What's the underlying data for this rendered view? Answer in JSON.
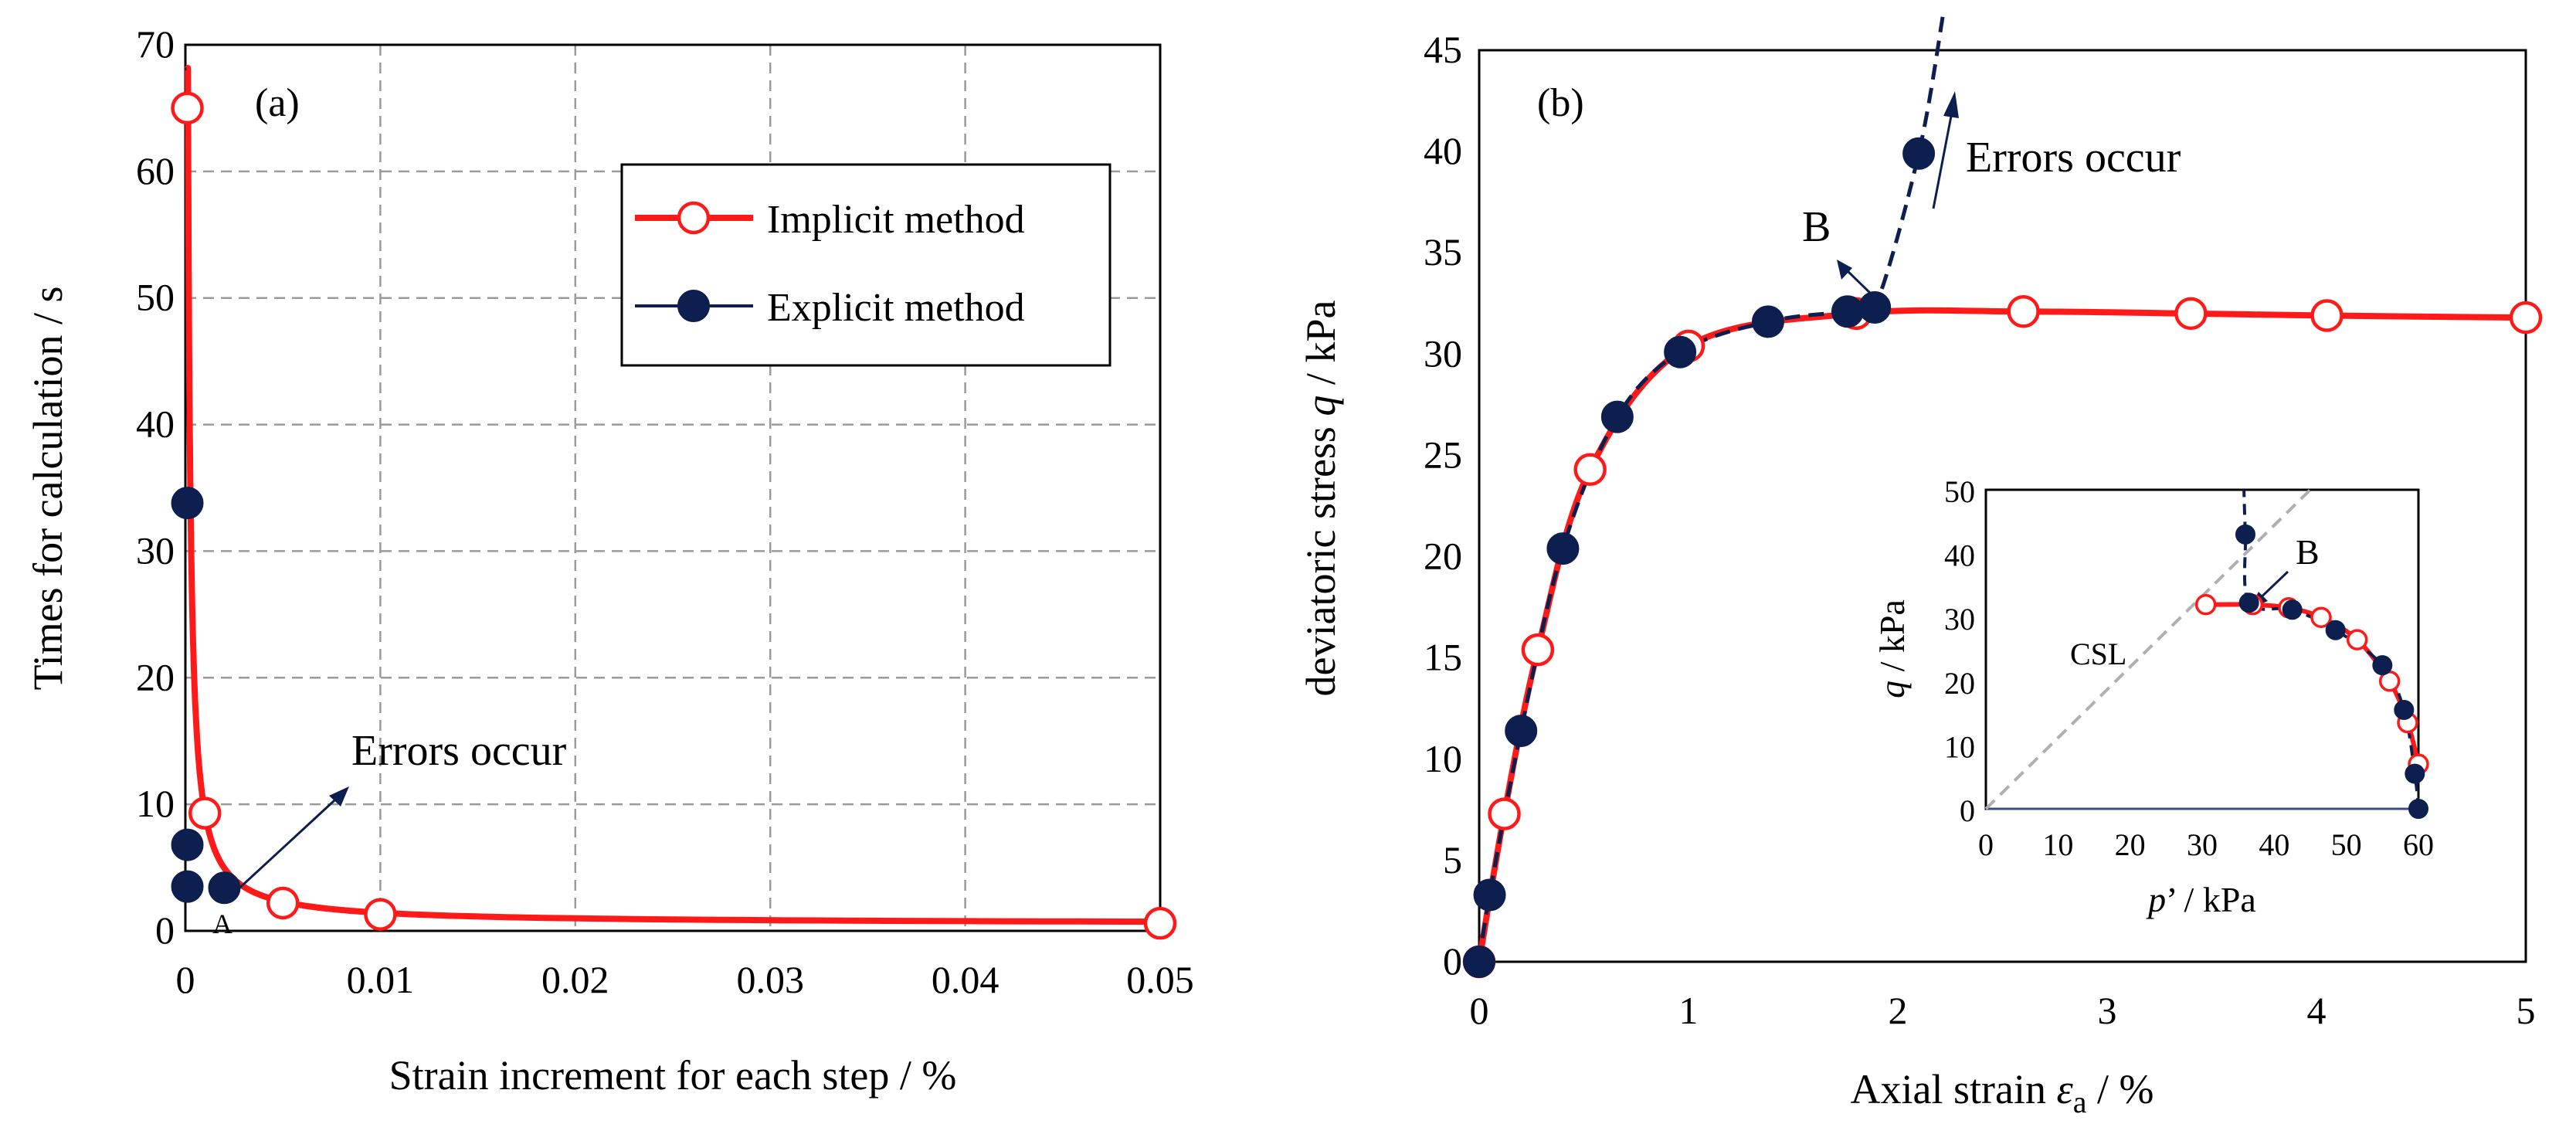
{
  "chart_data": [
    {
      "panel": "(a)",
      "type": "line",
      "xlabel": "Strain increment for each step / %",
      "ylabel": "Times for calculation / s",
      "xlim": [
        0,
        0.05
      ],
      "ylim": [
        0,
        70
      ],
      "x_ticks": [
        "0",
        "0.01",
        "0.02",
        "0.03",
        "0.04",
        "0.05"
      ],
      "y_ticks": [
        "0",
        "10",
        "20",
        "30",
        "40",
        "50",
        "60",
        "70"
      ],
      "grid": true,
      "legend_position": "top-right",
      "series": [
        {
          "name": "Implicit method",
          "color": "#ff1a1a",
          "marker": "open-circle",
          "points": [
            [
              0.0001,
              65
            ],
            [
              0.001,
              9.3
            ],
            [
              0.005,
              2.2
            ],
            [
              0.01,
              1.3
            ],
            [
              0.05,
              0.6
            ]
          ]
        },
        {
          "name": "Explicit method",
          "color": "#0d1f4f",
          "marker": "filled-circle",
          "points": [
            [
              0.0001,
              33.8
            ],
            [
              0.0001,
              6.8
            ],
            [
              0.0001,
              3.5
            ],
            [
              0.002,
              3.4
            ]
          ]
        }
      ],
      "annotations": [
        {
          "text": "Errors occur"
        },
        {
          "text": "A"
        }
      ]
    },
    {
      "panel": "(b)",
      "type": "line",
      "xlabel_prefix": "Axial strain ",
      "xlabel_symbol": "ε",
      "xlabel_subscript": "a",
      "xlabel_suffix": " / %",
      "ylabel_prefix": "deviatoric stress ",
      "ylabel_symbol": "q",
      "ylabel_suffix": " / kPa",
      "xlim": [
        0,
        5
      ],
      "ylim": [
        0,
        45
      ],
      "x_ticks": [
        "0",
        "1",
        "2",
        "3",
        "4",
        "5"
      ],
      "y_ticks": [
        "0",
        "5",
        "10",
        "15",
        "20",
        "25",
        "30",
        "35",
        "40",
        "45"
      ],
      "grid": false,
      "series": [
        {
          "name": "Implicit method",
          "color": "#ff1a1a",
          "marker": "open-circle",
          "points": [
            [
              0,
              0
            ],
            [
              0.12,
              7.3
            ],
            [
              0.28,
              15.4
            ],
            [
              0.53,
              24.3
            ],
            [
              1.0,
              30.4
            ],
            [
              1.8,
              32.0
            ],
            [
              2.6,
              32.1
            ],
            [
              3.4,
              32.0
            ],
            [
              4.05,
              31.9
            ],
            [
              5.0,
              31.8
            ]
          ]
        },
        {
          "name": "Explicit method",
          "color": "#0d1f4f",
          "marker": "filled-circle",
          "points": [
            [
              0,
              0
            ],
            [
              0.05,
              3.3
            ],
            [
              0.2,
              11.4
            ],
            [
              0.4,
              20.4
            ],
            [
              0.66,
              26.9
            ],
            [
              0.96,
              30.1
            ],
            [
              1.38,
              31.6
            ],
            [
              1.76,
              32.1
            ],
            [
              1.89,
              32.3
            ],
            [
              2.1,
              39.9
            ]
          ]
        }
      ],
      "annotations": [
        {
          "text": "Errors occur"
        },
        {
          "text": "B"
        }
      ],
      "inset": {
        "type": "line",
        "xlabel_symbol": "p",
        "xlabel_suffix": "’ / kPa",
        "ylabel_symbol": "q",
        "ylabel_suffix": " / kPa",
        "xlim": [
          0,
          60
        ],
        "ylim": [
          0,
          50
        ],
        "x_ticks": [
          "0",
          "10",
          "20",
          "30",
          "40",
          "50",
          "60"
        ],
        "y_ticks": [
          "0",
          "10",
          "20",
          "30",
          "40",
          "50"
        ],
        "csl_label": "CSL",
        "csl_points": [
          [
            0,
            0
          ],
          [
            45,
            50
          ]
        ],
        "implicit_points": [
          [
            60,
            7
          ],
          [
            58.5,
            13.5
          ],
          [
            56,
            20
          ],
          [
            51.5,
            26.5
          ],
          [
            46.5,
            30
          ],
          [
            42,
            31.5
          ],
          [
            37,
            32
          ],
          [
            30.5,
            32
          ]
        ],
        "explicit_points": [
          [
            60,
            0
          ],
          [
            59.5,
            5.5
          ],
          [
            58,
            15.5
          ],
          [
            55,
            22.5
          ],
          [
            48.5,
            28
          ],
          [
            42.5,
            31.2
          ],
          [
            36.5,
            32.3
          ],
          [
            36,
            43
          ]
        ],
        "annotation": "B"
      }
    }
  ]
}
